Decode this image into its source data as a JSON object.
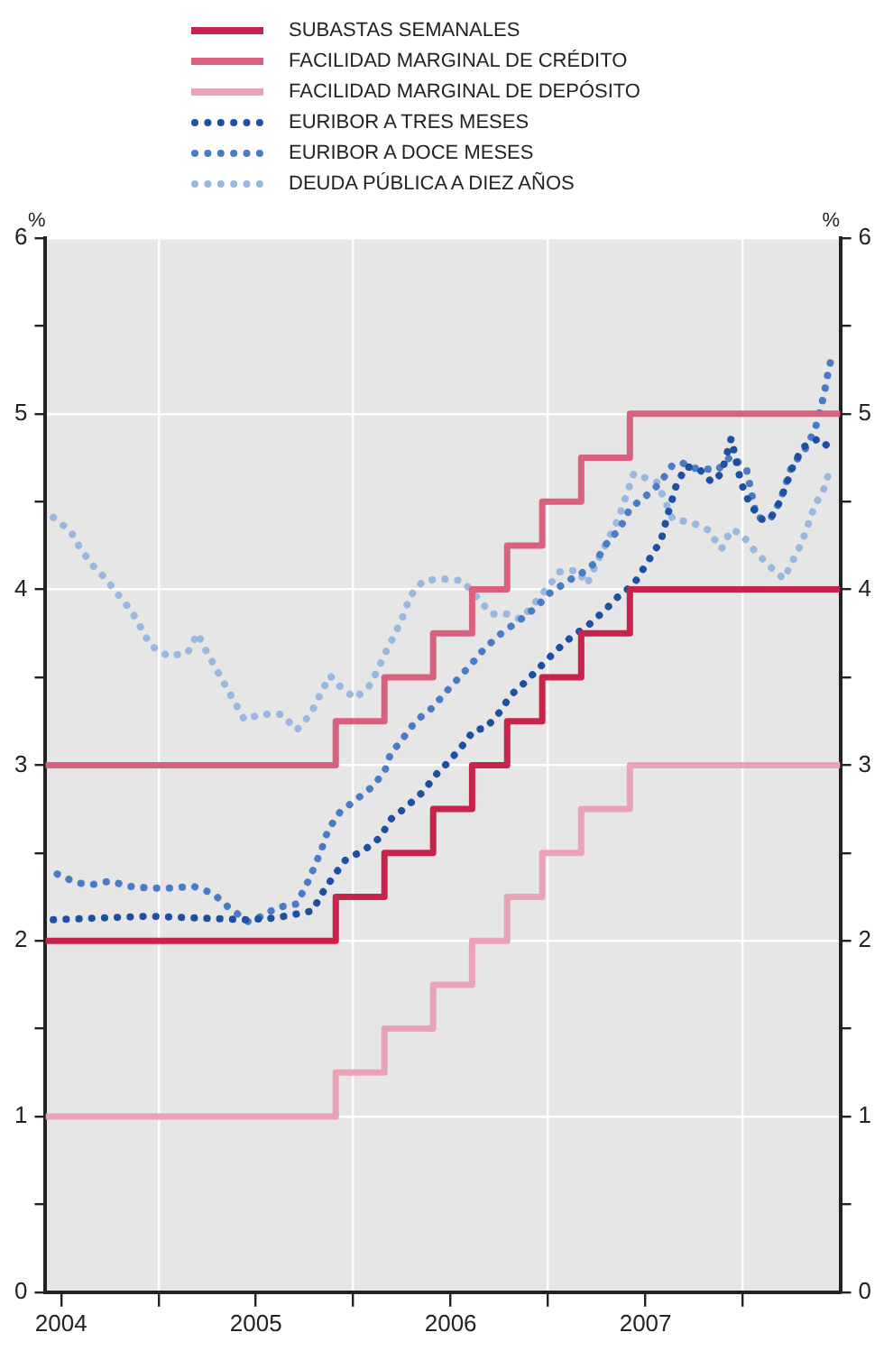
{
  "chart_data": {
    "type": "line",
    "ylabel": "%",
    "y2label": "%",
    "legend": "top",
    "x": [
      2003.92,
      2005.41,
      2005.66,
      2005.91,
      2006.11,
      2006.29,
      2006.47,
      2006.67,
      2006.92,
      2008.0
    ],
    "series": [
      {
        "name": "SUBASTAS SEMANALES",
        "type": "step",
        "color": "#c8234b",
        "line_style": "solid",
        "values": [
          2,
          2.25,
          2.5,
          2.75,
          3,
          3.25,
          3.5,
          3.75,
          4,
          4
        ]
      },
      {
        "name": "FACILIDAD MARGINAL DE CRÉDITO",
        "type": "step",
        "color": "#d9607f",
        "line_style": "solid",
        "values": [
          3,
          3.25,
          3.5,
          3.75,
          4,
          4.25,
          4.5,
          4.75,
          5,
          5
        ]
      },
      {
        "name": "FACILIDAD MARGINAL DE DEPÓSITO",
        "type": "step",
        "color": "#e9a3b6",
        "line_style": "solid",
        "values": [
          1,
          1.25,
          1.5,
          1.75,
          2,
          2.25,
          2.5,
          2.75,
          3,
          3
        ]
      },
      {
        "name": "EURIBOR A TRES MESES",
        "type": "line",
        "color": "#1f4fa0",
        "line_style": "dotted",
        "x": [
          2003.96,
          2004.2,
          2004.45,
          2004.7,
          2004.95,
          2005.1,
          2005.29,
          2005.34,
          2005.4,
          2005.46,
          2005.56,
          2005.64,
          2005.69,
          2005.77,
          2005.86,
          2005.92,
          2005.99,
          2006.06,
          2006.12,
          2006.18,
          2006.25,
          2006.31,
          2006.39,
          2006.46,
          2006.54,
          2006.62,
          2006.71,
          2006.79,
          2006.86,
          2006.94,
          2007.03,
          2007.08,
          2007.11,
          2007.16,
          2007.21,
          2007.28,
          2007.34,
          2007.39,
          2007.44,
          2007.49,
          2007.53,
          2007.59,
          2007.64,
          2007.69,
          2007.76,
          2007.81,
          2007.89,
          2007.95
        ],
        "values": [
          2.12,
          2.13,
          2.14,
          2.13,
          2.12,
          2.13,
          2.17,
          2.27,
          2.37,
          2.46,
          2.52,
          2.59,
          2.69,
          2.76,
          2.85,
          2.94,
          3.02,
          3.11,
          3.2,
          3.21,
          3.3,
          3.4,
          3.48,
          3.56,
          3.65,
          3.73,
          3.8,
          3.88,
          3.96,
          4.03,
          4.19,
          4.28,
          4.41,
          4.6,
          4.7,
          4.68,
          4.61,
          4.66,
          4.86,
          4.61,
          4.5,
          4.4,
          4.4,
          4.5,
          4.71,
          4.81,
          4.86,
          4.8
        ]
      },
      {
        "name": "EURIBOR A DOCE MESES",
        "type": "line",
        "color": "#4a7cc4",
        "line_style": "dotted",
        "x": [
          2003.98,
          2004.08,
          2004.16,
          2004.25,
          2004.35,
          2004.46,
          2004.56,
          2004.68,
          2004.78,
          2004.86,
          2004.96,
          2005.03,
          2005.11,
          2005.21,
          2005.26,
          2005.3,
          2005.34,
          2005.37,
          2005.43,
          2005.51,
          2005.59,
          2005.66,
          2005.69,
          2005.76,
          2005.82,
          2005.91,
          2005.97,
          2006.11,
          2006.17,
          2006.26,
          2006.36,
          2006.44,
          2006.51,
          2006.62,
          2006.67,
          2006.74,
          2006.8,
          2006.87,
          2006.92,
          2007.0,
          2007.07,
          2007.14,
          2007.19,
          2007.25,
          2007.37,
          2007.44,
          2007.52,
          2007.57,
          2007.64,
          2007.69,
          2007.75,
          2007.82,
          2007.87,
          2007.9,
          2007.92,
          2007.94,
          2007.96
        ],
        "values": [
          2.38,
          2.33,
          2.32,
          2.34,
          2.31,
          2.3,
          2.3,
          2.31,
          2.27,
          2.19,
          2.11,
          2.14,
          2.19,
          2.21,
          2.32,
          2.42,
          2.53,
          2.63,
          2.73,
          2.8,
          2.87,
          2.96,
          3.06,
          3.16,
          3.25,
          3.33,
          3.41,
          3.58,
          3.66,
          3.75,
          3.83,
          3.9,
          3.98,
          4.06,
          4.09,
          4.15,
          4.26,
          4.35,
          4.46,
          4.53,
          4.6,
          4.71,
          4.72,
          4.69,
          4.68,
          4.76,
          4.68,
          4.41,
          4.4,
          4.5,
          4.7,
          4.8,
          4.91,
          5.03,
          5.13,
          5.25,
          5.34
        ]
      },
      {
        "name": "DEUDA PÚBLICA A DIEZ AÑOS",
        "type": "line",
        "color": "#9ab8df",
        "line_style": "dotted",
        "x": [
          2003.96,
          2004.05,
          2004.1,
          2004.16,
          2004.23,
          2004.3,
          2004.36,
          2004.41,
          2004.46,
          2004.55,
          2004.65,
          2004.7,
          2004.74,
          2004.79,
          2004.84,
          2004.89,
          2004.94,
          2005.03,
          2005.13,
          2005.21,
          2005.28,
          2005.33,
          2005.38,
          2005.43,
          2005.51,
          2005.59,
          2005.67,
          2005.72,
          2005.76,
          2005.79,
          2005.86,
          2005.96,
          2006.06,
          2006.14,
          2006.21,
          2006.29,
          2006.36,
          2006.46,
          2006.56,
          2006.65,
          2006.7,
          2006.77,
          2006.86,
          2006.94,
          2007.06,
          2007.14,
          2007.24,
          2007.32,
          2007.39,
          2007.44,
          2007.49,
          2007.56,
          2007.64,
          2007.71,
          2007.8,
          2007.87,
          2007.92,
          2007.95
        ],
        "values": [
          4.41,
          4.33,
          4.23,
          4.14,
          4.06,
          3.96,
          3.88,
          3.78,
          3.68,
          3.62,
          3.64,
          3.75,
          3.66,
          3.56,
          3.46,
          3.36,
          3.26,
          3.29,
          3.29,
          3.2,
          3.29,
          3.4,
          3.51,
          3.45,
          3.38,
          3.46,
          3.65,
          3.76,
          3.86,
          3.96,
          4.05,
          4.06,
          4.05,
          3.95,
          3.86,
          3.86,
          3.83,
          3.96,
          4.1,
          4.11,
          4.03,
          4.2,
          4.4,
          4.66,
          4.61,
          4.4,
          4.38,
          4.34,
          4.23,
          4.34,
          4.32,
          4.22,
          4.13,
          4.06,
          4.26,
          4.48,
          4.58,
          4.7
        ]
      }
    ],
    "xlim": [
      2003.92,
      2008.0
    ],
    "xticks": [
      {
        "value": 2004,
        "label": "2004"
      },
      {
        "value": 2004.5,
        "label": null
      },
      {
        "value": 2005,
        "label": "2005"
      },
      {
        "value": 2005.5,
        "label": null
      },
      {
        "value": 2006,
        "label": "2006"
      },
      {
        "value": 2006.5,
        "label": null
      },
      {
        "value": 2007,
        "label": "2007"
      },
      {
        "value": 2007.5,
        "label": null
      }
    ],
    "ylim": [
      0,
      6
    ],
    "yticks": [
      0,
      {
        "value": 0.5,
        "label": null
      },
      1,
      {
        "value": 1.5,
        "label": null
      },
      2,
      {
        "value": 2.5,
        "label": null
      },
      3,
      {
        "value": 3.5,
        "label": null
      },
      4,
      {
        "value": 4.5,
        "label": null
      },
      5,
      {
        "value": 5.5,
        "label": null
      },
      6
    ],
    "y2lim": [
      0,
      6
    ],
    "y2ticks": [
      0,
      {
        "value": 0.5,
        "label": null
      },
      1,
      {
        "value": 1.5,
        "label": null
      },
      2,
      {
        "value": 2.5,
        "label": null
      },
      3,
      {
        "value": 3.5,
        "label": null
      },
      4,
      {
        "value": 4.5,
        "label": null
      },
      5,
      {
        "value": 5.5,
        "label": null
      },
      6
    ],
    "grid": true
  }
}
